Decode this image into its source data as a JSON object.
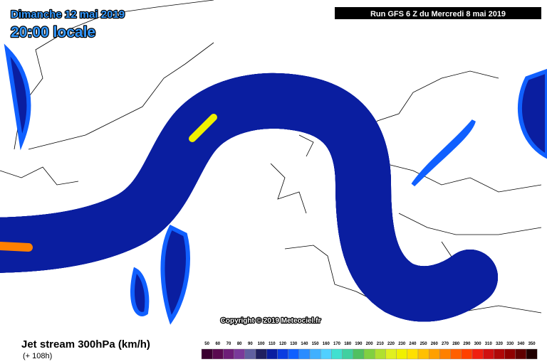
{
  "header": {
    "date": "Dimanche 12 mai 2019",
    "time": "20:00 locale",
    "run": "Run GFS 6 Z du Mercredi 8 mai 2019"
  },
  "map": {
    "copyright": "Copyright © 2019 Meteociel.fr"
  },
  "footer": {
    "title": "Jet stream 300hPa (km/h)",
    "lead": "(+ 108h)"
  },
  "legend": {
    "values": [
      50,
      60,
      70,
      80,
      90,
      100,
      110,
      120,
      130,
      140,
      150,
      160,
      170,
      180,
      190,
      200,
      210,
      220,
      230,
      240,
      250,
      260,
      270,
      280,
      290,
      300,
      310,
      320,
      330,
      340,
      350
    ],
    "colors": [
      "#3a0030",
      "#5a0a50",
      "#6e1e78",
      "#7a3a9a",
      "#6060a0",
      "#202060",
      "#0a1ea0",
      "#0a3ce0",
      "#1060ff",
      "#2a8cff",
      "#40b0ff",
      "#50d0ff",
      "#40e0d0",
      "#40d0a0",
      "#50c060",
      "#80d040",
      "#b0e030",
      "#e0f020",
      "#f0f000",
      "#ffe000",
      "#ffc000",
      "#ffa000",
      "#ff8000",
      "#ff6000",
      "#ff4000",
      "#f02010",
      "#d01010",
      "#b00808",
      "#900000",
      "#600000",
      "#200000"
    ]
  }
}
